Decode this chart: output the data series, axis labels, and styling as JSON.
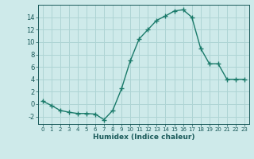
{
  "x": [
    0,
    1,
    2,
    3,
    4,
    5,
    6,
    7,
    8,
    9,
    10,
    11,
    12,
    13,
    14,
    15,
    16,
    17,
    18,
    19,
    20,
    21,
    22,
    23
  ],
  "y": [
    0.5,
    -0.2,
    -1.0,
    -1.3,
    -1.5,
    -1.5,
    -1.6,
    -2.5,
    -1.0,
    2.5,
    7.0,
    10.5,
    12.0,
    13.5,
    14.2,
    15.0,
    15.2,
    14.0,
    9.0,
    6.5,
    6.5,
    4.0,
    4.0,
    4.0
  ],
  "xlabel": "Humidex (Indice chaleur)",
  "xlim": [
    -0.5,
    23.5
  ],
  "ylim": [
    -3.2,
    16.0
  ],
  "yticks": [
    -2,
    0,
    2,
    4,
    6,
    8,
    10,
    12,
    14
  ],
  "xticks": [
    0,
    1,
    2,
    3,
    4,
    5,
    6,
    7,
    8,
    9,
    10,
    11,
    12,
    13,
    14,
    15,
    16,
    17,
    18,
    19,
    20,
    21,
    22,
    23
  ],
  "line_color": "#1a7a6a",
  "marker_color": "#1a7a6a",
  "bg_color": "#ceeaea",
  "grid_color": "#aed4d4",
  "tick_color": "#1a5a5a",
  "label_color": "#1a5a5a"
}
